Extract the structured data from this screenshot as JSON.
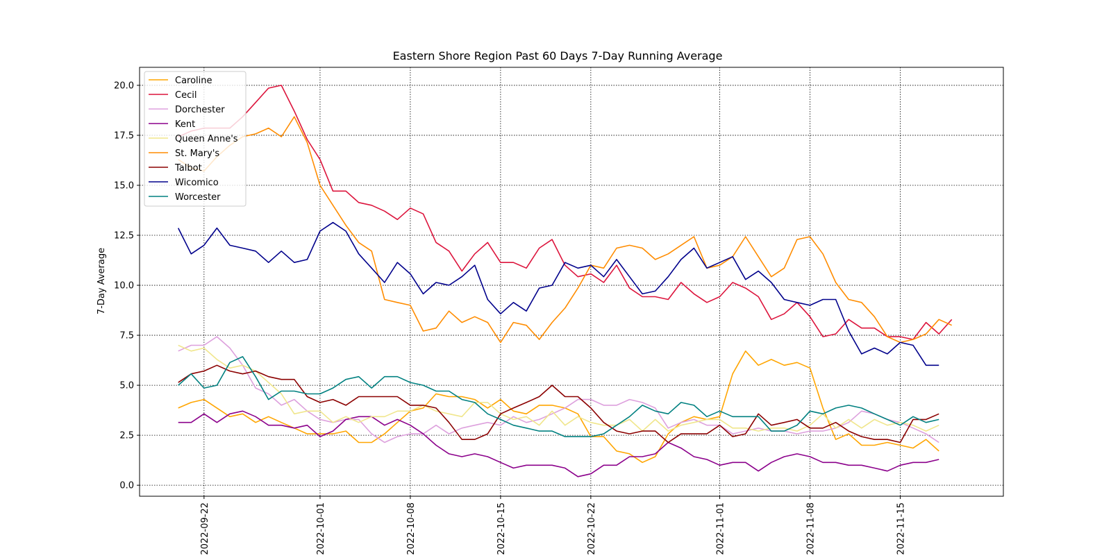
{
  "chart_data": {
    "type": "line",
    "title": "Eastern Shore Region Past 60 Days 7-Day Running Average",
    "xlabel": "",
    "ylabel": "7-Day Average",
    "x_start": "2022-09-20",
    "x_end": "2022-11-20",
    "xlim": [
      "2022-09-17",
      "2022-11-23"
    ],
    "ylim": [
      -0.55,
      20.9
    ],
    "yticks": [
      0.0,
      2.5,
      5.0,
      7.5,
      10.0,
      12.5,
      15.0,
      17.5,
      20.0
    ],
    "ytick_labels": [
      "0.0",
      "2.5",
      "5.0",
      "7.5",
      "10.0",
      "12.5",
      "15.0",
      "17.5",
      "20.0"
    ],
    "xticks": [
      "2022-09-22",
      "2022-10-01",
      "2022-10-08",
      "2022-10-15",
      "2022-10-22",
      "2022-11-01",
      "2022-11-08",
      "2022-11-15"
    ],
    "grid": true,
    "grid_style": "dotted",
    "legend_position": "top-left",
    "series": [
      {
        "name": "Caroline",
        "color": "#ffa500",
        "values": [
          3.86,
          4.14,
          4.29,
          3.86,
          3.43,
          3.57,
          3.14,
          3.43,
          3.14,
          2.86,
          2.57,
          2.57,
          2.57,
          2.71,
          2.14,
          2.14,
          2.57,
          3.14,
          3.71,
          3.86,
          4.57,
          4.43,
          4.43,
          4.29,
          3.86,
          4.29,
          3.71,
          3.57,
          4.0,
          4.0,
          3.86,
          3.57,
          2.43,
          2.43,
          1.71,
          1.57,
          1.14,
          1.43,
          2.57,
          3.14,
          3.43,
          3.29,
          3.43,
          5.57,
          6.71,
          6.0,
          6.29,
          6.0,
          6.14,
          5.86,
          3.86,
          2.29,
          2.57,
          2.0,
          2.0,
          2.14,
          2.0,
          1.86,
          2.29,
          1.71
        ]
      },
      {
        "name": "Cecil",
        "color": "#dc143c",
        "values": [
          17.43,
          17.71,
          17.86,
          17.86,
          17.86,
          18.43,
          19.14,
          19.86,
          20.0,
          18.71,
          17.29,
          16.29,
          14.71,
          14.71,
          14.14,
          14.0,
          13.71,
          13.29,
          13.86,
          13.57,
          12.14,
          11.71,
          10.71,
          11.57,
          12.14,
          11.14,
          11.14,
          10.86,
          11.86,
          12.29,
          11.0,
          10.43,
          10.57,
          10.14,
          11.0,
          9.86,
          9.43,
          9.43,
          9.29,
          10.14,
          9.57,
          9.14,
          9.43,
          10.14,
          9.86,
          9.43,
          8.29,
          8.57,
          9.14,
          8.43,
          7.43,
          7.57,
          8.29,
          7.86,
          7.86,
          7.43,
          7.43,
          7.29,
          8.14,
          7.57,
          8.29
        ]
      },
      {
        "name": "Dorchester",
        "color": "#dda0dd",
        "values": [
          6.71,
          7.0,
          7.0,
          7.43,
          6.86,
          6.0,
          4.86,
          4.57,
          4.0,
          4.29,
          3.71,
          3.29,
          3.14,
          3.29,
          3.29,
          2.57,
          2.14,
          2.43,
          2.57,
          2.57,
          3.0,
          2.57,
          2.86,
          3.0,
          3.14,
          3.0,
          3.43,
          3.14,
          3.29,
          3.57,
          3.86,
          4.29,
          4.29,
          4.0,
          4.0,
          4.29,
          4.14,
          3.86,
          2.86,
          3.14,
          3.29,
          3.0,
          3.0,
          2.57,
          2.71,
          2.86,
          2.71,
          2.71,
          2.57,
          2.71,
          2.71,
          2.86,
          3.14,
          3.71,
          3.57,
          3.29,
          3.14,
          2.86,
          2.57,
          2.14
        ]
      },
      {
        "name": "Kent",
        "color": "#8b008b",
        "values": [
          3.14,
          3.14,
          3.57,
          3.14,
          3.57,
          3.71,
          3.43,
          3.0,
          3.0,
          2.86,
          3.0,
          2.43,
          2.71,
          3.29,
          3.43,
          3.43,
          3.0,
          3.29,
          3.0,
          2.57,
          2.0,
          1.57,
          1.43,
          1.57,
          1.43,
          1.14,
          0.86,
          1.0,
          1.0,
          1.0,
          0.86,
          0.43,
          0.57,
          1.0,
          1.0,
          1.43,
          1.43,
          1.57,
          2.14,
          1.86,
          1.43,
          1.29,
          1.0,
          1.14,
          1.14,
          0.71,
          1.14,
          1.43,
          1.57,
          1.43,
          1.14,
          1.14,
          1.0,
          1.0,
          0.86,
          0.71,
          1.0,
          1.14,
          1.14,
          1.29
        ]
      },
      {
        "name": "Queen Anne's",
        "color": "#f0e68c",
        "values": [
          7.0,
          6.71,
          6.86,
          6.29,
          5.86,
          6.0,
          5.71,
          5.14,
          4.57,
          3.57,
          3.71,
          3.71,
          3.14,
          3.43,
          3.14,
          3.43,
          3.43,
          3.71,
          3.71,
          4.0,
          3.71,
          3.57,
          3.43,
          4.14,
          4.14,
          3.57,
          3.29,
          3.43,
          3.0,
          3.71,
          3.0,
          3.43,
          3.14,
          3.0,
          3.0,
          3.29,
          2.71,
          3.29,
          2.71,
          3.0,
          3.14,
          3.29,
          3.29,
          2.86,
          2.86,
          2.71,
          2.86,
          2.86,
          2.71,
          3.0,
          3.57,
          2.86,
          3.29,
          2.86,
          3.29,
          3.0,
          3.14,
          3.0,
          2.71,
          3.0
        ]
      },
      {
        "name": "St. Mary's",
        "color": "#ff8c00",
        "values": [
          16.29,
          15.86,
          15.71,
          16.43,
          17.0,
          17.43,
          17.57,
          17.86,
          17.43,
          18.43,
          17.14,
          15.0,
          14.0,
          13.0,
          12.14,
          11.71,
          9.29,
          9.14,
          9.0,
          7.71,
          7.86,
          8.71,
          8.14,
          8.43,
          8.14,
          7.14,
          8.14,
          8.0,
          7.29,
          8.14,
          8.86,
          9.86,
          11.0,
          10.86,
          11.86,
          12.0,
          11.86,
          11.29,
          11.57,
          12.0,
          12.43,
          10.86,
          11.0,
          11.43,
          12.43,
          11.43,
          10.43,
          10.86,
          12.29,
          12.43,
          11.57,
          10.14,
          9.29,
          9.14,
          8.43,
          7.43,
          7.14,
          7.29,
          7.57,
          8.29,
          8.0
        ]
      },
      {
        "name": "Talbot",
        "color": "#8b0000",
        "values": [
          5.14,
          5.57,
          5.71,
          6.0,
          5.71,
          5.57,
          5.71,
          5.43,
          5.29,
          5.29,
          4.43,
          4.14,
          4.29,
          4.0,
          4.43,
          4.43,
          4.43,
          4.43,
          4.0,
          4.0,
          3.86,
          3.14,
          2.29,
          2.29,
          2.57,
          3.57,
          3.86,
          4.14,
          4.43,
          5.0,
          4.43,
          4.43,
          3.86,
          3.14,
          2.71,
          2.57,
          2.71,
          2.71,
          2.14,
          2.57,
          2.57,
          2.57,
          3.0,
          2.43,
          2.57,
          3.57,
          3.0,
          3.14,
          3.29,
          2.86,
          2.86,
          3.14,
          2.71,
          2.43,
          2.29,
          2.29,
          2.14,
          3.29,
          3.29,
          3.57
        ]
      },
      {
        "name": "Wicomico",
        "color": "#00008b",
        "values": [
          12.86,
          11.57,
          12.0,
          12.86,
          12.0,
          11.86,
          11.71,
          11.14,
          11.71,
          11.14,
          11.29,
          12.71,
          13.14,
          12.71,
          11.57,
          10.86,
          10.14,
          11.14,
          10.57,
          9.57,
          10.14,
          10.0,
          10.43,
          11.0,
          9.29,
          8.57,
          9.14,
          8.71,
          9.86,
          10.0,
          11.14,
          10.86,
          11.0,
          10.43,
          11.29,
          10.43,
          9.57,
          9.71,
          10.43,
          11.29,
          11.86,
          10.86,
          11.14,
          11.43,
          10.29,
          10.71,
          10.14,
          9.29,
          9.14,
          9.0,
          9.29,
          9.29,
          7.71,
          6.57,
          6.86,
          6.57,
          7.14,
          7.0,
          6.0,
          6.0
        ]
      },
      {
        "name": "Worcester",
        "color": "#008080",
        "values": [
          5.0,
          5.57,
          4.86,
          5.0,
          6.14,
          6.43,
          5.43,
          4.29,
          4.71,
          4.71,
          4.57,
          4.57,
          4.86,
          5.29,
          5.43,
          4.86,
          5.43,
          5.43,
          5.14,
          5.0,
          4.71,
          4.71,
          4.29,
          4.14,
          3.57,
          3.29,
          3.0,
          2.86,
          2.71,
          2.71,
          2.43,
          2.43,
          2.43,
          2.57,
          3.0,
          3.43,
          4.0,
          3.71,
          3.57,
          4.14,
          4.0,
          3.43,
          3.71,
          3.43,
          3.43,
          3.43,
          2.71,
          2.71,
          3.0,
          3.71,
          3.57,
          3.86,
          4.0,
          3.86,
          3.57,
          3.29,
          3.0,
          3.43,
          3.14,
          3.29
        ]
      }
    ]
  }
}
